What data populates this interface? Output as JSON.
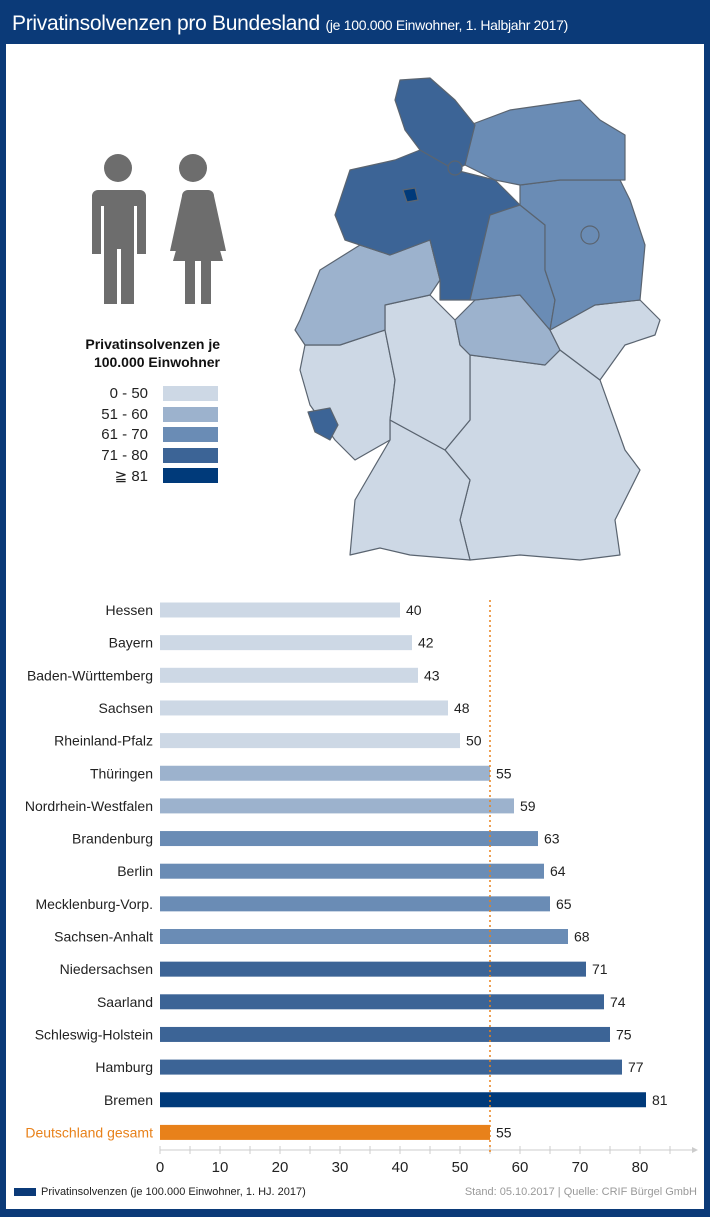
{
  "header": {
    "title": "Privatinsolvenzen pro Bundesland",
    "subtitle": "(je 100.000 Einwohner, 1. Halbjahr 2017)"
  },
  "legend": {
    "title_line1": "Privatinsolvenzen je",
    "title_line2": "100.000 Einwohner",
    "items": [
      {
        "label": "0 - 50",
        "color": "#cdd8e5"
      },
      {
        "label": "51 - 60",
        "color": "#9cb2cd"
      },
      {
        "label": "61 - 70",
        "color": "#6a8cb5"
      },
      {
        "label": "71 - 80",
        "color": "#3c6496"
      },
      {
        "label": "≧ 81",
        "color": "#003a7a"
      }
    ]
  },
  "icons": [
    "man-icon",
    "woman-icon",
    "germany-map"
  ],
  "chart_data": {
    "type": "bar",
    "orientation": "horizontal",
    "categories": [
      "Hessen",
      "Bayern",
      "Baden-Württemberg",
      "Sachsen",
      "Rheinland-Pfalz",
      "Thüringen",
      "Nordrhein-Westfalen",
      "Brandenburg",
      "Berlin",
      "Mecklenburg-Vorp.",
      "Sachsen-Anhalt",
      "Niedersachsen",
      "Saarland",
      "Schleswig-Holstein",
      "Hamburg",
      "Bremen",
      "Deutschland gesamt"
    ],
    "values": [
      40,
      42,
      43,
      48,
      50,
      55,
      59,
      63,
      64,
      65,
      68,
      71,
      74,
      75,
      77,
      81,
      55
    ],
    "highlight": {
      "category": "Deutschland gesamt",
      "color": "#e8811a"
    },
    "reference_line": {
      "value": 55,
      "color": "#e8811a",
      "style": "dotted"
    },
    "xticks": [
      0,
      10,
      20,
      30,
      40,
      50,
      60,
      70,
      80
    ],
    "xlim": [
      0,
      88
    ],
    "grid": false
  },
  "footer": {
    "legend_label": "Privatinsolvenzen (je 100.000 Einwohner, 1. HJ. 2017)",
    "source": "Stand: 05.10.2017 | Quelle: CRIF Bürgel GmbH"
  }
}
